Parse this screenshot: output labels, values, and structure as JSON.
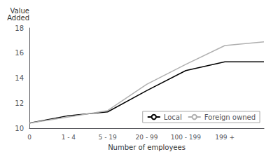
{
  "chart_data": {
    "type": "line",
    "categories": [
      "0",
      "1 - 4",
      "5 - 19",
      "20 - 99",
      "100 - 199",
      "199 +",
      null
    ],
    "series": [
      {
        "name": "Local",
        "color": "#000000",
        "values": [
          10.4,
          11.0,
          11.3,
          13.0,
          14.6,
          15.3,
          15.3
        ]
      },
      {
        "name": "Foreign owned",
        "color": "#b0b0b0",
        "values": [
          10.4,
          10.9,
          11.4,
          13.5,
          15.1,
          16.6,
          16.9
        ]
      }
    ],
    "ylabel": "Value\nAdded",
    "xlabel": "Number of employees",
    "ylim": [
      10,
      18
    ],
    "yticks": [
      10,
      12,
      14,
      16,
      18
    ],
    "grid": false,
    "legend": "lower right"
  }
}
